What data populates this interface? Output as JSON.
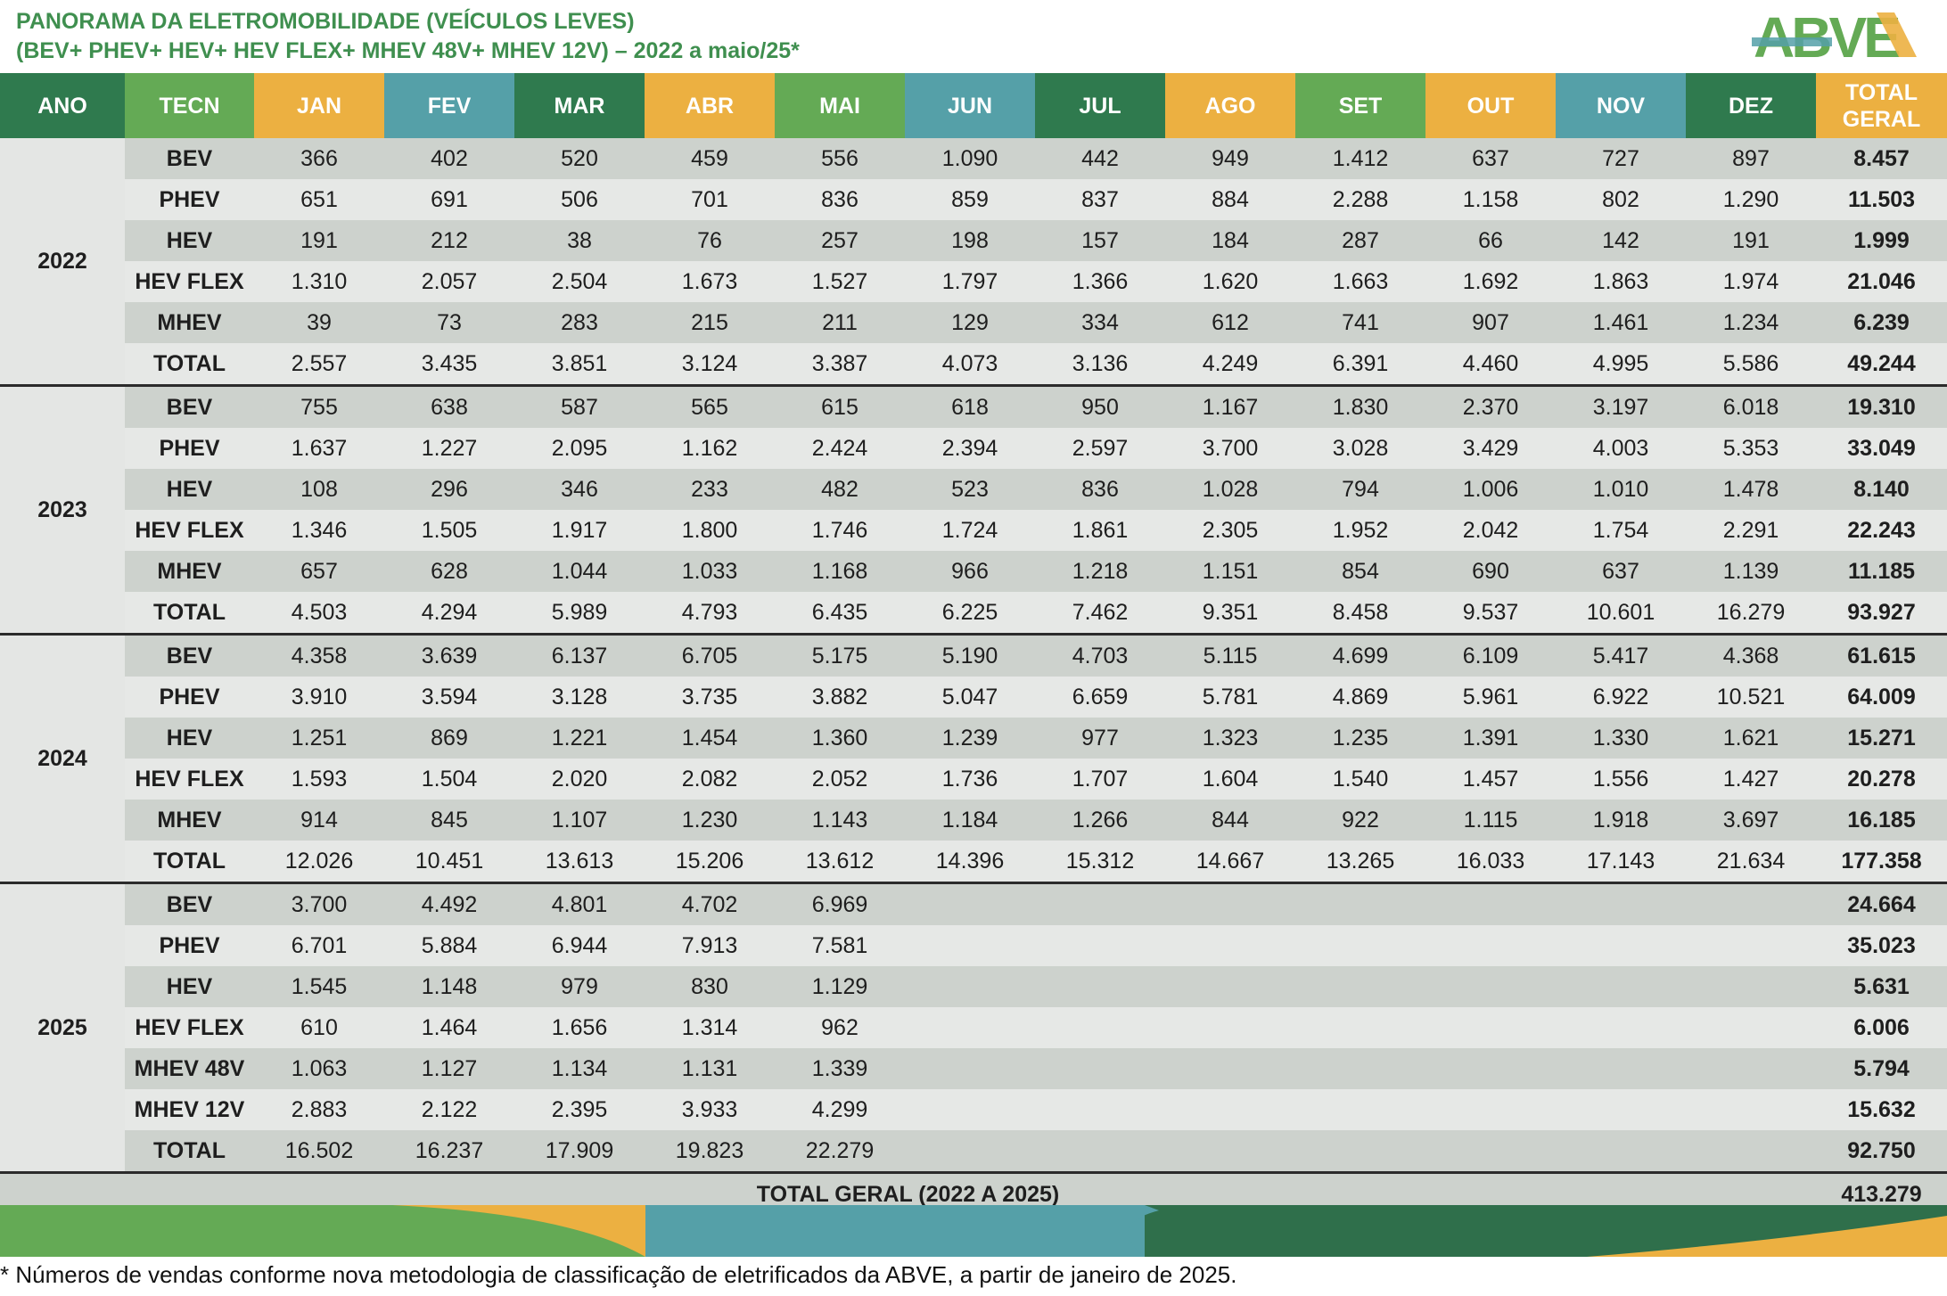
{
  "title": {
    "line1": "PANORAMA DA ELETROMOBILIDADE (VEÍCULOS LEVES)",
    "line2": "(BEV+ PHEV+ HEV+ HEV FLEX+ MHEV 48V+ MHEV 12V) – 2022 a maio/25*"
  },
  "logo": {
    "text": "ABVE"
  },
  "colors": {
    "green": "#64aa55",
    "dark_green": "#2f7a4e",
    "gold": "#ecb041",
    "teal": "#55a0a8"
  },
  "header": {
    "ano": "ANO",
    "tecn": "TECN",
    "months": [
      "JAN",
      "FEV",
      "MAR",
      "ABR",
      "MAI",
      "JUN",
      "JUL",
      "AGO",
      "SET",
      "OUT",
      "NOV",
      "DEZ"
    ],
    "total_line1": "TOTAL",
    "total_line2": "GERAL"
  },
  "years": [
    {
      "year": "2022",
      "rows": [
        {
          "tech": "BEV",
          "months": [
            "366",
            "402",
            "520",
            "459",
            "556",
            "1.090",
            "442",
            "949",
            "1.412",
            "637",
            "727",
            "897"
          ],
          "total": "8.457"
        },
        {
          "tech": "PHEV",
          "months": [
            "651",
            "691",
            "506",
            "701",
            "836",
            "859",
            "837",
            "884",
            "2.288",
            "1.158",
            "802",
            "1.290"
          ],
          "total": "11.503"
        },
        {
          "tech": "HEV",
          "months": [
            "191",
            "212",
            "38",
            "76",
            "257",
            "198",
            "157",
            "184",
            "287",
            "66",
            "142",
            "191"
          ],
          "total": "1.999"
        },
        {
          "tech": "HEV FLEX",
          "months": [
            "1.310",
            "2.057",
            "2.504",
            "1.673",
            "1.527",
            "1.797",
            "1.366",
            "1.620",
            "1.663",
            "1.692",
            "1.863",
            "1.974"
          ],
          "total": "21.046"
        },
        {
          "tech": "MHEV",
          "months": [
            "39",
            "73",
            "283",
            "215",
            "211",
            "129",
            "334",
            "612",
            "741",
            "907",
            "1.461",
            "1.234"
          ],
          "total": "6.239"
        },
        {
          "tech": "TOTAL",
          "months": [
            "2.557",
            "3.435",
            "3.851",
            "3.124",
            "3.387",
            "4.073",
            "3.136",
            "4.249",
            "6.391",
            "4.460",
            "4.995",
            "5.586"
          ],
          "total": "49.244"
        }
      ]
    },
    {
      "year": "2023",
      "rows": [
        {
          "tech": "BEV",
          "months": [
            "755",
            "638",
            "587",
            "565",
            "615",
            "618",
            "950",
            "1.167",
            "1.830",
            "2.370",
            "3.197",
            "6.018"
          ],
          "total": "19.310"
        },
        {
          "tech": "PHEV",
          "months": [
            "1.637",
            "1.227",
            "2.095",
            "1.162",
            "2.424",
            "2.394",
            "2.597",
            "3.700",
            "3.028",
            "3.429",
            "4.003",
            "5.353"
          ],
          "total": "33.049"
        },
        {
          "tech": "HEV",
          "months": [
            "108",
            "296",
            "346",
            "233",
            "482",
            "523",
            "836",
            "1.028",
            "794",
            "1.006",
            "1.010",
            "1.478"
          ],
          "total": "8.140"
        },
        {
          "tech": "HEV FLEX",
          "months": [
            "1.346",
            "1.505",
            "1.917",
            "1.800",
            "1.746",
            "1.724",
            "1.861",
            "2.305",
            "1.952",
            "2.042",
            "1.754",
            "2.291"
          ],
          "total": "22.243"
        },
        {
          "tech": "MHEV",
          "months": [
            "657",
            "628",
            "1.044",
            "1.033",
            "1.168",
            "966",
            "1.218",
            "1.151",
            "854",
            "690",
            "637",
            "1.139"
          ],
          "total": "11.185"
        },
        {
          "tech": "TOTAL",
          "months": [
            "4.503",
            "4.294",
            "5.989",
            "4.793",
            "6.435",
            "6.225",
            "7.462",
            "9.351",
            "8.458",
            "9.537",
            "10.601",
            "16.279"
          ],
          "total": "93.927"
        }
      ]
    },
    {
      "year": "2024",
      "rows": [
        {
          "tech": "BEV",
          "months": [
            "4.358",
            "3.639",
            "6.137",
            "6.705",
            "5.175",
            "5.190",
            "4.703",
            "5.115",
            "4.699",
            "6.109",
            "5.417",
            "4.368"
          ],
          "total": "61.615"
        },
        {
          "tech": "PHEV",
          "months": [
            "3.910",
            "3.594",
            "3.128",
            "3.735",
            "3.882",
            "5.047",
            "6.659",
            "5.781",
            "4.869",
            "5.961",
            "6.922",
            "10.521"
          ],
          "total": "64.009"
        },
        {
          "tech": "HEV",
          "months": [
            "1.251",
            "869",
            "1.221",
            "1.454",
            "1.360",
            "1.239",
            "977",
            "1.323",
            "1.235",
            "1.391",
            "1.330",
            "1.621"
          ],
          "total": "15.271"
        },
        {
          "tech": "HEV FLEX",
          "months": [
            "1.593",
            "1.504",
            "2.020",
            "2.082",
            "2.052",
            "1.736",
            "1.707",
            "1.604",
            "1.540",
            "1.457",
            "1.556",
            "1.427"
          ],
          "total": "20.278"
        },
        {
          "tech": "MHEV",
          "months": [
            "914",
            "845",
            "1.107",
            "1.230",
            "1.143",
            "1.184",
            "1.266",
            "844",
            "922",
            "1.115",
            "1.918",
            "3.697"
          ],
          "total": "16.185"
        },
        {
          "tech": "TOTAL",
          "months": [
            "12.026",
            "10.451",
            "13.613",
            "15.206",
            "13.612",
            "14.396",
            "15.312",
            "14.667",
            "13.265",
            "16.033",
            "17.143",
            "21.634"
          ],
          "total": "177.358"
        }
      ]
    },
    {
      "year": "2025",
      "rows": [
        {
          "tech": "BEV",
          "months": [
            "3.700",
            "4.492",
            "4.801",
            "4.702",
            "6.969",
            "",
            "",
            "",
            "",
            "",
            "",
            ""
          ],
          "total": "24.664"
        },
        {
          "tech": "PHEV",
          "months": [
            "6.701",
            "5.884",
            "6.944",
            "7.913",
            "7.581",
            "",
            "",
            "",
            "",
            "",
            "",
            ""
          ],
          "total": "35.023"
        },
        {
          "tech": "HEV",
          "months": [
            "1.545",
            "1.148",
            "979",
            "830",
            "1.129",
            "",
            "",
            "",
            "",
            "",
            "",
            ""
          ],
          "total": "5.631"
        },
        {
          "tech": "HEV FLEX",
          "months": [
            "610",
            "1.464",
            "1.656",
            "1.314",
            "962",
            "",
            "",
            "",
            "",
            "",
            "",
            ""
          ],
          "total": "6.006"
        },
        {
          "tech": "MHEV 48V",
          "months": [
            "1.063",
            "1.127",
            "1.134",
            "1.131",
            "1.339",
            "",
            "",
            "",
            "",
            "",
            "",
            ""
          ],
          "total": "5.794"
        },
        {
          "tech": "MHEV 12V",
          "months": [
            "2.883",
            "2.122",
            "2.395",
            "3.933",
            "4.299",
            "",
            "",
            "",
            "",
            "",
            "",
            ""
          ],
          "total": "15.632"
        },
        {
          "tech": "TOTAL",
          "months": [
            "16.502",
            "16.237",
            "17.909",
            "19.823",
            "22.279",
            "",
            "",
            "",
            "",
            "",
            "",
            ""
          ],
          "total": "92.750"
        }
      ]
    }
  ],
  "grand_total": {
    "label": "TOTAL GERAL (2022 A 2025)",
    "value": "413.279"
  },
  "footnote": "* Números de vendas conforme nova metodologia de classificação de eletrificados da ABVE, a partir de janeiro de 2025."
}
